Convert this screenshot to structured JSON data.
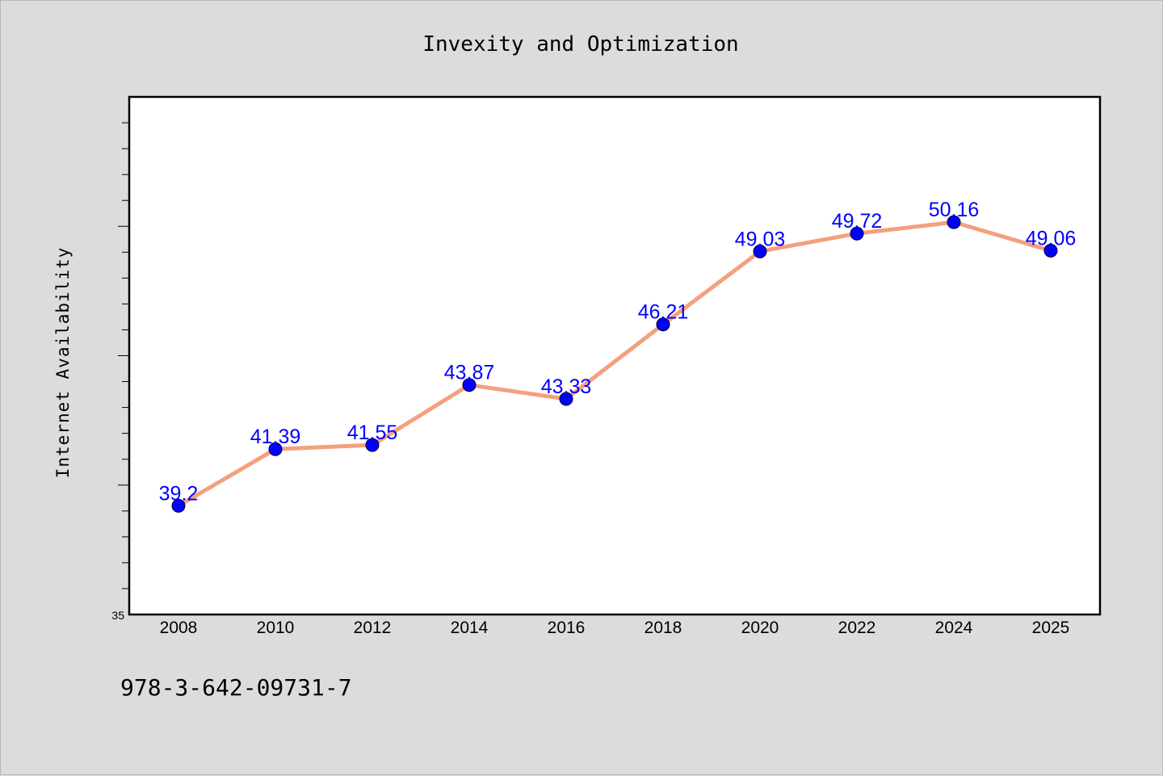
{
  "chart_data": {
    "type": "line",
    "title": "Invexity and Optimization",
    "xlabel": "",
    "ylabel": "Internet Availability",
    "categories": [
      "2008",
      "2010",
      "2012",
      "2014",
      "2016",
      "2018",
      "2020",
      "2022",
      "2024",
      "2025"
    ],
    "series": [
      {
        "values": [
          39.2,
          41.39,
          41.55,
          43.87,
          43.33,
          46.21,
          49.03,
          49.72,
          50.16,
          49.06
        ],
        "labels": [
          "39.2",
          "41.39",
          "41.55",
          "43.87",
          "43.33",
          "46.21",
          "49.03",
          "49.72",
          "50.16",
          "49.06"
        ],
        "line_color": "#f4a07d",
        "marker_color": "#0000ff"
      }
    ],
    "ylim": [
      35,
      55
    ],
    "yticks_labeled": [
      "35"
    ],
    "grid": false,
    "legend": "none"
  },
  "footer": {
    "code": "978-3-642-09731-7"
  },
  "colors": {
    "background": "#dcdcdc",
    "plot_background": "#ffffff",
    "line": "#f4a07d",
    "markers": "#0000ff",
    "data_labels": "#0000ff"
  }
}
